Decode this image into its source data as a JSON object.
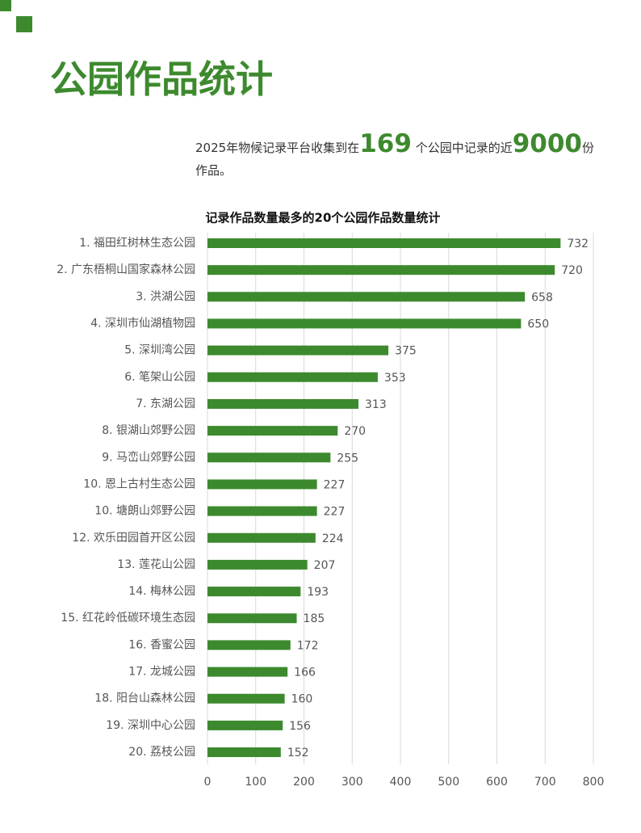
{
  "header": {
    "title": "公园作品统计"
  },
  "intro": {
    "before": "2025年物候记录平台收集到在",
    "parks": 169,
    "middle": "个公园中记录的近",
    "works": 9000,
    "after": "份作品。"
  },
  "chart_data": {
    "type": "bar",
    "title": "记录作品数量最多的20个公园作品数量统计",
    "categories": [
      "1. 福田红树林生态公园",
      "2. 广东梧桐山国家森林公园",
      "3. 洪湖公园",
      "4. 深圳市仙湖植物园",
      "5. 深圳湾公园",
      "6. 笔架山公园",
      "7. 东湖公园",
      "8. 银湖山郊野公园",
      "9. 马峦山郊野公园",
      "10. 恩上古村生态公园",
      "10. 塘朗山郊野公园",
      "12. 欢乐田园首开区公园",
      "13. 莲花山公园",
      "14. 梅林公园",
      "15. 红花岭低碳环境生态园",
      "16. 香蜜公园",
      "17. 龙城公园",
      "18. 阳台山森林公园",
      "19. 深圳中心公园",
      "20. 荔枝公园"
    ],
    "values": [
      732,
      720,
      658,
      650,
      375,
      353,
      313,
      270,
      255,
      227,
      227,
      224,
      207,
      193,
      185,
      172,
      166,
      160,
      156,
      152
    ],
    "color": "#3d8a2e",
    "xlim": [
      0,
      800
    ],
    "xticks": [
      0,
      100,
      200,
      300,
      400,
      500,
      600,
      700,
      800
    ],
    "grid": true
  }
}
